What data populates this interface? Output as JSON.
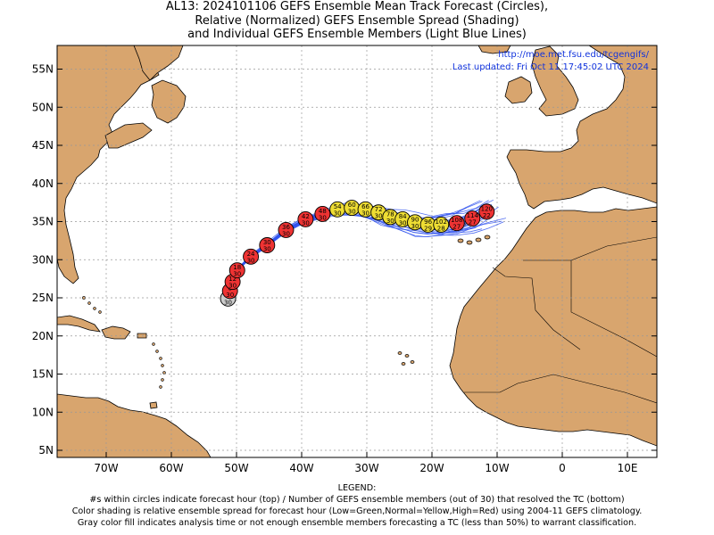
{
  "title": {
    "line1": "AL13: 2024101106 GEFS Ensemble Mean Track Forecast (Circles),",
    "line2": "Relative (Normalized) GEFS Ensemble Spread (Shading)",
    "line3": "and Individual GEFS Ensemble Members (Light Blue Lines)"
  },
  "overlay": {
    "url": "http://moe.met.fsu.edu/tcgengifs/",
    "updated": "Last updated: Fri Oct 11 17:45:02 UTC 2024"
  },
  "axes": {
    "lon_labels": [
      "70W",
      "60W",
      "50W",
      "40W",
      "30W",
      "20W",
      "10W",
      "0",
      "10E"
    ],
    "lat_labels": [
      "55N",
      "50N",
      "45N",
      "40N",
      "35N",
      "30N",
      "25N",
      "20N",
      "15N",
      "10N",
      "5N"
    ]
  },
  "legend": {
    "heading": "LEGEND:",
    "line1": "#s within circles indicate forecast hour (top) / Number of GEFS ensemble members (out of 30) that resolved the TC (bottom)",
    "line2": "Color shading is relative ensemble spread for forecast hour (Low=Green,Normal=Yellow,High=Red) using 2004-11 GEFS climatology.",
    "line3": "Gray color fill indicates analysis time or not enough ensemble members forecasting a TC (less than 50%) to warrant classification."
  },
  "colors": {
    "land": "#d8a56e",
    "ocean": "#ffffff",
    "member_track": "#3355ee",
    "high_spread": "#ee3333",
    "normal_spread": "#eedd33",
    "analysis": "#cccccc"
  },
  "track_points": [
    {
      "hour": "0",
      "members": "30",
      "lon": -51.3,
      "lat": 24.9,
      "spread": "analysis"
    },
    {
      "hour": "6",
      "members": "30",
      "lon": -51.0,
      "lat": 25.9,
      "spread": "high"
    },
    {
      "hour": "12",
      "members": "30",
      "lon": -50.6,
      "lat": 27.1,
      "spread": "high"
    },
    {
      "hour": "18",
      "members": "30",
      "lon": -49.9,
      "lat": 28.6,
      "spread": "high"
    },
    {
      "hour": "24",
      "members": "30",
      "lon": -47.8,
      "lat": 30.4,
      "spread": "high"
    },
    {
      "hour": "30",
      "members": "30",
      "lon": -45.3,
      "lat": 31.9,
      "spread": "high"
    },
    {
      "hour": "36",
      "members": "30",
      "lon": -42.4,
      "lat": 33.9,
      "spread": "high"
    },
    {
      "hour": "42",
      "members": "30",
      "lon": -39.4,
      "lat": 35.3,
      "spread": "high"
    },
    {
      "hour": "48",
      "members": "30",
      "lon": -36.8,
      "lat": 36.0,
      "spread": "high"
    },
    {
      "hour": "54",
      "members": "30",
      "lon": -34.5,
      "lat": 36.6,
      "spread": "normal"
    },
    {
      "hour": "60",
      "members": "30",
      "lon": -32.3,
      "lat": 36.8,
      "spread": "normal"
    },
    {
      "hour": "66",
      "members": "30",
      "lon": -30.2,
      "lat": 36.6,
      "spread": "normal"
    },
    {
      "hour": "72",
      "members": "30",
      "lon": -28.2,
      "lat": 36.2,
      "spread": "normal"
    },
    {
      "hour": "78",
      "members": "30",
      "lon": -26.4,
      "lat": 35.6,
      "spread": "normal"
    },
    {
      "hour": "84",
      "members": "30",
      "lon": -24.5,
      "lat": 35.3,
      "spread": "normal"
    },
    {
      "hour": "90",
      "members": "30",
      "lon": -22.6,
      "lat": 34.9,
      "spread": "normal"
    },
    {
      "hour": "96",
      "members": "29",
      "lon": -20.6,
      "lat": 34.6,
      "spread": "normal"
    },
    {
      "hour": "102",
      "members": "28",
      "lon": -18.6,
      "lat": 34.6,
      "spread": "normal"
    },
    {
      "hour": "108",
      "members": "27",
      "lon": -16.2,
      "lat": 34.8,
      "spread": "high"
    },
    {
      "hour": "114",
      "members": "27",
      "lon": -13.8,
      "lat": 35.4,
      "spread": "high"
    },
    {
      "hour": "120",
      "members": "22",
      "lon": -11.6,
      "lat": 36.3,
      "spread": "high"
    }
  ]
}
